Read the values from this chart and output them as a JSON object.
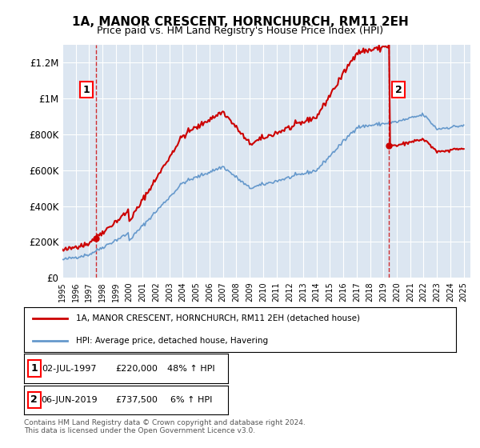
{
  "title": "1A, MANOR CRESCENT, HORNCHURCH, RM11 2EH",
  "subtitle": "Price paid vs. HM Land Registry's House Price Index (HPI)",
  "xlabel": "",
  "ylabel": "",
  "ylim": [
    0,
    1300000
  ],
  "yticks": [
    0,
    200000,
    400000,
    600000,
    800000,
    1000000,
    1200000
  ],
  "ytick_labels": [
    "£0",
    "£200K",
    "£400K",
    "£600K",
    "£800K",
    "£1M",
    "£1.2M"
  ],
  "background_color": "#dce6f1",
  "plot_bg_color": "#dce6f1",
  "sale1_date": 1997.5,
  "sale1_price": 220000,
  "sale1_label": "02-JUL-1997",
  "sale1_amount": "£220,000",
  "sale1_pct": "48% ↑ HPI",
  "sale2_date": 2019.42,
  "sale2_price": 737500,
  "sale2_label": "06-JUN-2019",
  "sale2_amount": "£737,500",
  "sale2_pct": "6% ↑ HPI",
  "legend_line1": "1A, MANOR CRESCENT, HORNCHURCH, RM11 2EH (detached house)",
  "legend_line2": "HPI: Average price, detached house, Havering",
  "footer": "Contains HM Land Registry data © Crown copyright and database right 2024.\nThis data is licensed under the Open Government Licence v3.0.",
  "line_color_red": "#cc0000",
  "line_color_blue": "#6699cc",
  "vline_color": "#cc0000",
  "marker_color_red": "#cc0000",
  "marker_color_blue": "#6699cc"
}
